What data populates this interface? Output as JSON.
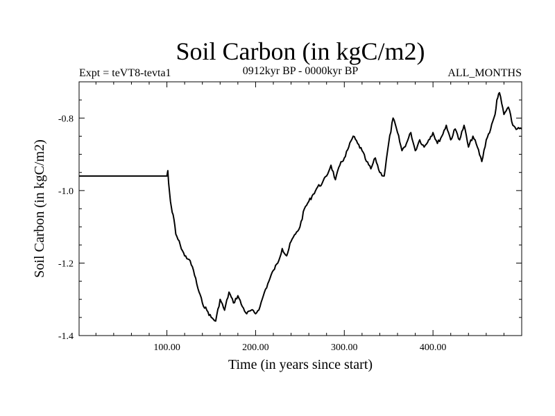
{
  "chart_data": {
    "type": "line",
    "title": "Soil Carbon (in kgC/m2)",
    "subtitle_left": "Expt = teVT8-tevta1",
    "subtitle_center": "0912kyr BP - 0000kyr BP",
    "subtitle_right": "ALL_MONTHS",
    "xlabel": "Time (in years since start)",
    "ylabel": "Soil Carbon (in kgC/m2)",
    "xlim": [
      1,
      500
    ],
    "ylim": [
      -1.4,
      -0.7
    ],
    "x_ticks": [
      100,
      200,
      300,
      400
    ],
    "x_tick_labels": [
      "100.00",
      "200.00",
      "300.00",
      "400.00"
    ],
    "y_ticks": [
      -0.8,
      -1.0,
      -1.2,
      -1.4
    ],
    "y_tick_labels": [
      "-0.8",
      "-1.0",
      "-1.2",
      "-1.4"
    ],
    "series": [
      {
        "name": "Soil Carbon",
        "x": [
          1,
          100,
          101,
          102,
          104,
          106,
          108,
          110,
          115,
          120,
          125,
          130,
          135,
          140,
          145,
          150,
          155,
          160,
          165,
          170,
          175,
          180,
          185,
          190,
          195,
          200,
          205,
          210,
          215,
          220,
          225,
          230,
          235,
          240,
          245,
          250,
          255,
          260,
          265,
          270,
          275,
          280,
          285,
          290,
          295,
          300,
          305,
          310,
          315,
          320,
          325,
          330,
          335,
          340,
          345,
          350,
          355,
          360,
          365,
          370,
          375,
          380,
          385,
          390,
          395,
          400,
          405,
          410,
          415,
          420,
          425,
          430,
          435,
          440,
          445,
          450,
          455,
          460,
          465,
          470,
          472,
          475,
          480,
          485,
          490,
          495,
          500
        ],
        "y": [
          -0.96,
          -0.96,
          -0.945,
          -0.98,
          -1.03,
          -1.06,
          -1.08,
          -1.12,
          -1.15,
          -1.18,
          -1.19,
          -1.22,
          -1.27,
          -1.31,
          -1.33,
          -1.35,
          -1.36,
          -1.3,
          -1.33,
          -1.28,
          -1.31,
          -1.29,
          -1.32,
          -1.34,
          -1.33,
          -1.34,
          -1.32,
          -1.28,
          -1.25,
          -1.22,
          -1.2,
          -1.16,
          -1.18,
          -1.14,
          -1.12,
          -1.1,
          -1.05,
          -1.03,
          -1.01,
          -0.99,
          -0.98,
          -0.96,
          -0.93,
          -0.97,
          -0.93,
          -0.91,
          -0.88,
          -0.85,
          -0.87,
          -0.89,
          -0.92,
          -0.94,
          -0.91,
          -0.95,
          -0.96,
          -0.87,
          -0.8,
          -0.84,
          -0.89,
          -0.87,
          -0.84,
          -0.89,
          -0.86,
          -0.88,
          -0.86,
          -0.84,
          -0.87,
          -0.85,
          -0.82,
          -0.86,
          -0.83,
          -0.86,
          -0.82,
          -0.88,
          -0.85,
          -0.88,
          -0.92,
          -0.86,
          -0.83,
          -0.79,
          -0.75,
          -0.73,
          -0.79,
          -0.77,
          -0.82,
          -0.83,
          -0.83
        ]
      }
    ]
  }
}
